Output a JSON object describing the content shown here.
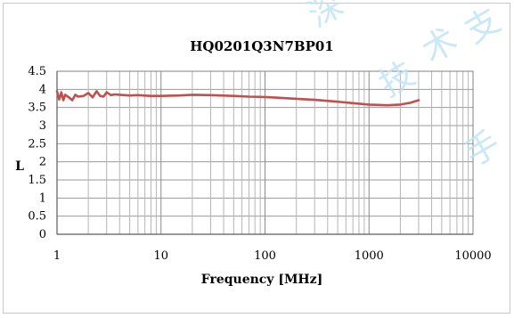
{
  "chart_data": {
    "type": "line",
    "title": "HQ0201Q3N7BP01",
    "xlabel": "Frequency [MHz]",
    "ylabel": "L",
    "x_scale": "log",
    "xlim": [
      1,
      10000
    ],
    "ylim": [
      0,
      4.5
    ],
    "x_ticks": [
      "1",
      "10",
      "100",
      "1000",
      "10000"
    ],
    "y_ticks": [
      "0",
      "0.5",
      "1",
      "1.5",
      "2",
      "2.5",
      "3",
      "3.5",
      "4",
      "4.5"
    ],
    "grid": true,
    "legend": "none",
    "series": [
      {
        "color": "#c0504d",
        "x": [
          1,
          1.05,
          1.1,
          1.15,
          1.2,
          1.3,
          1.4,
          1.5,
          1.6,
          1.8,
          2.0,
          2.2,
          2.4,
          2.6,
          2.8,
          3.0,
          3.3,
          3.6,
          4,
          5,
          6,
          8,
          10,
          15,
          20,
          30,
          50,
          70,
          100,
          150,
          200,
          300,
          500,
          700,
          1000,
          1500,
          2000,
          2500,
          3000
        ],
        "y": [
          3.95,
          3.72,
          3.92,
          3.7,
          3.85,
          3.78,
          3.7,
          3.85,
          3.8,
          3.82,
          3.9,
          3.78,
          3.95,
          3.82,
          3.8,
          3.92,
          3.84,
          3.86,
          3.85,
          3.83,
          3.84,
          3.82,
          3.82,
          3.83,
          3.85,
          3.84,
          3.82,
          3.8,
          3.79,
          3.76,
          3.74,
          3.71,
          3.66,
          3.62,
          3.58,
          3.56,
          3.58,
          3.63,
          3.7
        ]
      }
    ]
  },
  "watermark": {
    "chars": [
      "深",
      "技",
      "术",
      "支",
      "手"
    ]
  }
}
